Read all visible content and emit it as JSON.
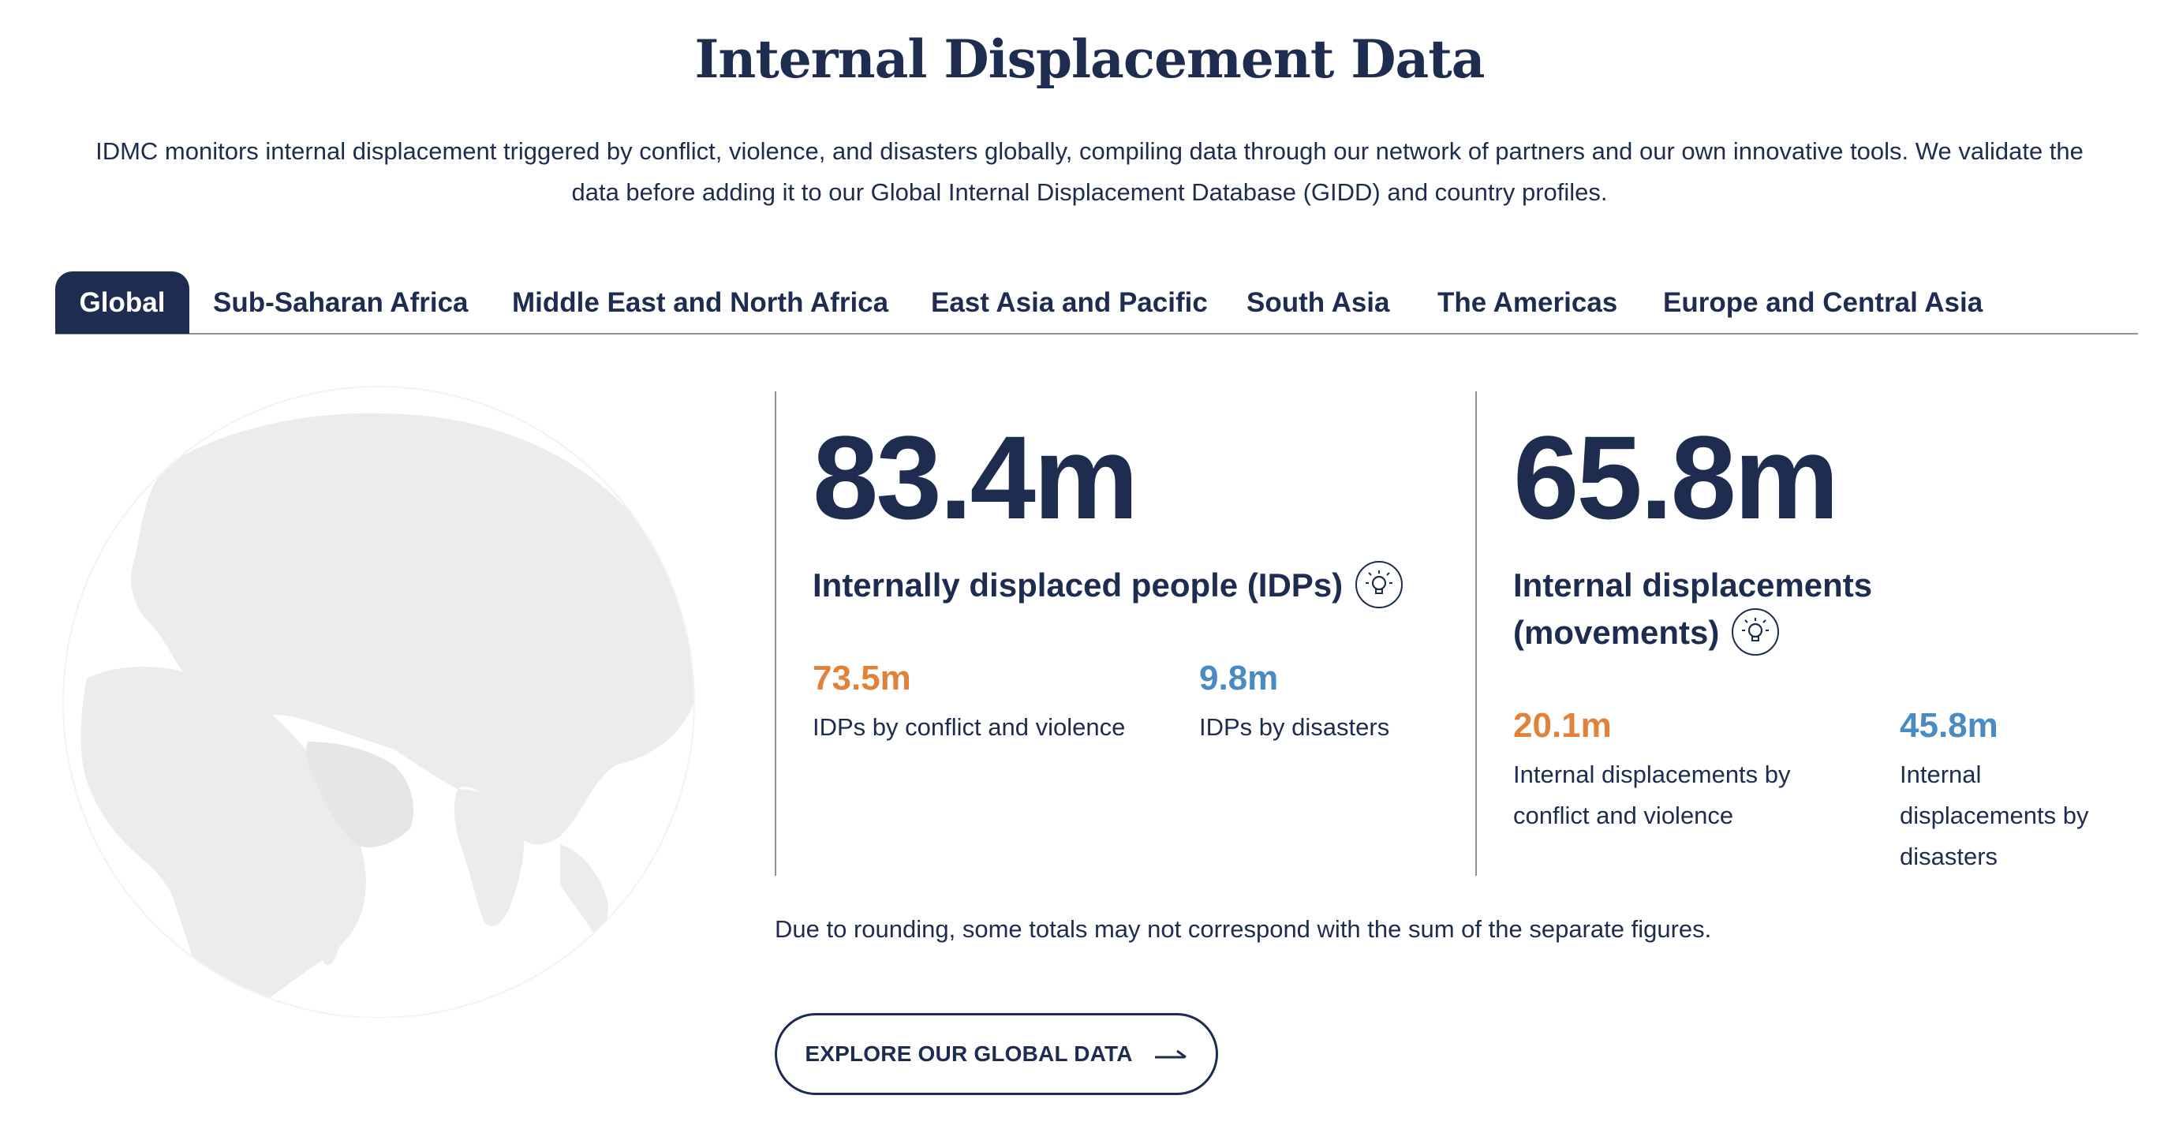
{
  "header": {
    "title": "Internal Displacement Data",
    "intro": "IDMC monitors internal displacement triggered by conflict, violence, and disasters globally, compiling data through our network of partners and our own innovative tools. We validate the data before adding it to our Global Internal Displacement Database (GIDD) and country profiles."
  },
  "tabs": [
    {
      "label": "Global",
      "active": true
    },
    {
      "label": "Sub-Saharan Africa",
      "active": false
    },
    {
      "label": "Middle East and North Africa",
      "active": false
    },
    {
      "label": "East Asia and Pacific",
      "active": false
    },
    {
      "label": "South Asia",
      "active": false
    },
    {
      "label": "The Americas",
      "active": false
    },
    {
      "label": "Europe and Central Asia",
      "active": false
    }
  ],
  "idps": {
    "total": "83.4m",
    "heading": "Internally displaced people (IDPs)",
    "info_icon": "lightbulb-icon",
    "conflict_value": "73.5m",
    "conflict_label": "IDPs by conflict and violence",
    "disaster_value": "9.8m",
    "disaster_label": "IDPs by disasters"
  },
  "movements": {
    "total": "65.8m",
    "heading_line1": "Internal displacements",
    "heading_line2": "(movements)",
    "info_icon": "lightbulb-icon",
    "conflict_value": "20.1m",
    "conflict_label_line1": "Internal displacements by",
    "conflict_label_line2": "conflict and violence",
    "disaster_value": "45.8m",
    "disaster_label_line1": "Internal",
    "disaster_label_line2": "displacements by",
    "disaster_label_line3": "disasters"
  },
  "note": "Due to rounding, some totals may not correspond with the sum of the separate figures.",
  "cta": {
    "label": "EXPLORE OUR GLOBAL DATA",
    "icon": "arrow-right-icon"
  },
  "colors": {
    "navy": "#1d2c4f",
    "conflict": "#e0823a",
    "disaster": "#4a8bc4",
    "globe": "#ebeced"
  }
}
